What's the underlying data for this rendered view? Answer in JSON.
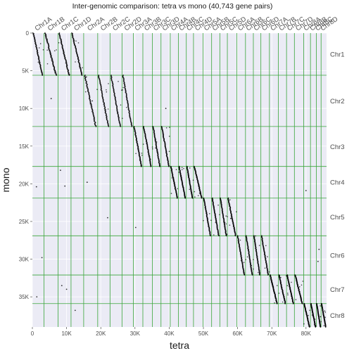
{
  "chart_data": {
    "type": "scatter",
    "title": "Inter-genomic comparison: tetra vs mono (40,743 gene pairs)",
    "xlabel": "tetra",
    "ylabel": "mono",
    "xlim": [
      0,
      86000
    ],
    "ylim": [
      0,
      39000
    ],
    "y_inverted": true,
    "grid": true,
    "x_ticks": [
      {
        "value": 0,
        "label": "0"
      },
      {
        "value": 10000,
        "label": "10K"
      },
      {
        "value": 20000,
        "label": "20K"
      },
      {
        "value": 30000,
        "label": "30K"
      },
      {
        "value": 40000,
        "label": "40K"
      },
      {
        "value": 50000,
        "label": "50K"
      },
      {
        "value": 60000,
        "label": "60K"
      },
      {
        "value": 70000,
        "label": "70K"
      },
      {
        "value": 80000,
        "label": "80K"
      }
    ],
    "y_ticks": [
      {
        "value": 0,
        "label": "0"
      },
      {
        "value": 5000,
        "label": "5K"
      },
      {
        "value": 10000,
        "label": "10K"
      },
      {
        "value": 15000,
        "label": "15K"
      },
      {
        "value": 20000,
        "label": "20K"
      },
      {
        "value": 25000,
        "label": "25K"
      },
      {
        "value": 30000,
        "label": "30K"
      },
      {
        "value": 35000,
        "label": "35K"
      }
    ],
    "top_chromosomes": [
      {
        "label": "Chr1A",
        "start": 0,
        "end": 3400
      },
      {
        "label": "Chr1B",
        "start": 3400,
        "end": 7500
      },
      {
        "label": "Chr1C",
        "start": 7500,
        "end": 11300
      },
      {
        "label": "Chr1D",
        "start": 11300,
        "end": 15000
      },
      {
        "label": "Chr2A",
        "start": 15000,
        "end": 19100
      },
      {
        "label": "Chr2B",
        "start": 19100,
        "end": 22700
      },
      {
        "label": "Chr2C",
        "start": 22700,
        "end": 26200
      },
      {
        "label": "Chr2D",
        "start": 26200,
        "end": 29500
      },
      {
        "label": "Chr3A",
        "start": 29500,
        "end": 32300
      },
      {
        "label": "Chr3B",
        "start": 32300,
        "end": 35100
      },
      {
        "label": "Chr3C",
        "start": 35100,
        "end": 37600
      },
      {
        "label": "Chr3D",
        "start": 37600,
        "end": 40300
      },
      {
        "label": "Chr4A",
        "start": 40300,
        "end": 42700
      },
      {
        "label": "Chr4B",
        "start": 42700,
        "end": 45000
      },
      {
        "label": "Chr4C",
        "start": 45000,
        "end": 47100
      },
      {
        "label": "Chr4D",
        "start": 47100,
        "end": 49900
      },
      {
        "label": "Chr5A",
        "start": 49900,
        "end": 52400
      },
      {
        "label": "Chr5B",
        "start": 52400,
        "end": 54800
      },
      {
        "label": "Chr5C",
        "start": 54800,
        "end": 57000
      },
      {
        "label": "Chr5D",
        "start": 57000,
        "end": 59800
      },
      {
        "label": "Chr6A",
        "start": 59800,
        "end": 62300
      },
      {
        "label": "Chr6B",
        "start": 62300,
        "end": 64600
      },
      {
        "label": "Chr6C",
        "start": 64600,
        "end": 66800
      },
      {
        "label": "Chr6D",
        "start": 66800,
        "end": 69300
      },
      {
        "label": "Chr7A",
        "start": 69300,
        "end": 71900
      },
      {
        "label": "Chr7B",
        "start": 71900,
        "end": 74300
      },
      {
        "label": "Chr7C",
        "start": 74300,
        "end": 76600
      },
      {
        "label": "Chr7D",
        "start": 76600,
        "end": 79300
      },
      {
        "label": "Chr8A",
        "start": 79300,
        "end": 81300
      },
      {
        "label": "Chr8B",
        "start": 81300,
        "end": 83000
      },
      {
        "label": "Chr8C",
        "start": 83000,
        "end": 84400
      },
      {
        "label": "Chr8D",
        "start": 84400,
        "end": 86000
      }
    ],
    "right_chromosomes": [
      {
        "label": "Chr1",
        "start": 0,
        "end": 5600
      },
      {
        "label": "Chr2",
        "start": 5600,
        "end": 12400
      },
      {
        "label": "Chr3",
        "start": 12400,
        "end": 17700
      },
      {
        "label": "Chr4",
        "start": 17700,
        "end": 21900
      },
      {
        "label": "Chr5",
        "start": 21900,
        "end": 26900
      },
      {
        "label": "Chr6",
        "start": 26900,
        "end": 32100
      },
      {
        "label": "Chr7",
        "start": 32100,
        "end": 35900
      },
      {
        "label": "Chr8",
        "start": 35900,
        "end": 39000
      }
    ],
    "colors": {
      "panel": "#ebebf5",
      "major_grid": "#ffffff",
      "boundary": "#3aa63a",
      "points": "#000000"
    }
  }
}
